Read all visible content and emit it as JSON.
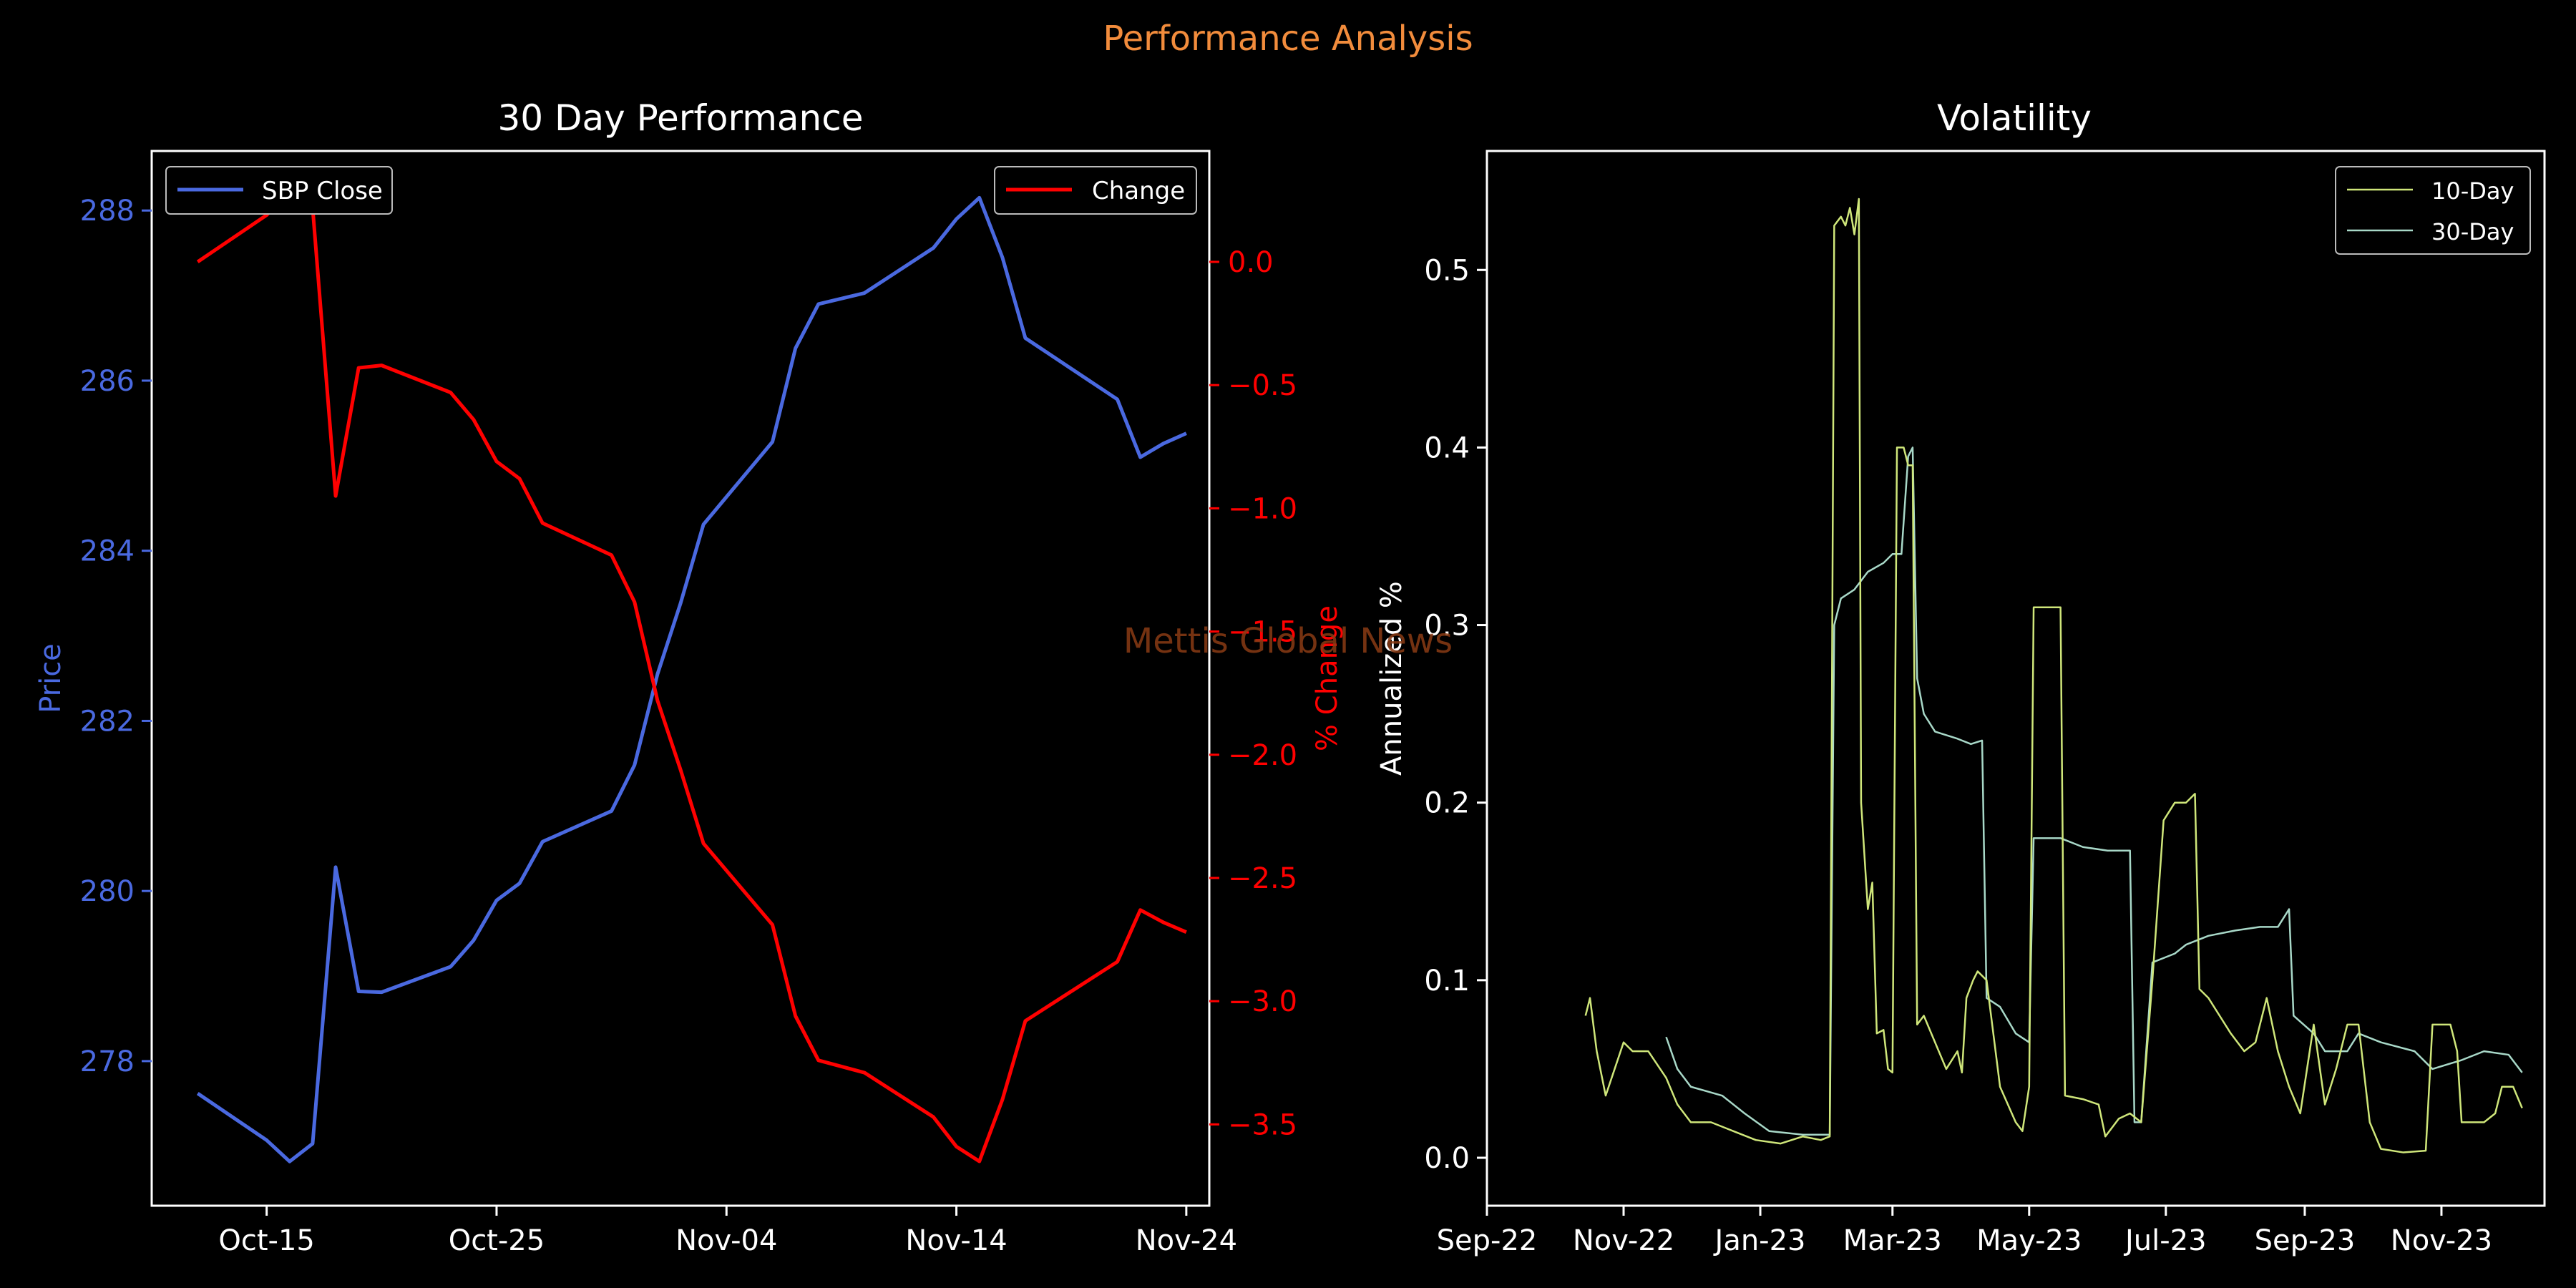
{
  "suptitle": "Performance Analysis",
  "watermark": "Mettis Global News",
  "colors": {
    "background": "#000000",
    "suptitle": "#f28c3c",
    "price": "#4a69e0",
    "change": "#ff0000",
    "vol10": "#cfe67a",
    "vol30": "#a8d8c8",
    "watermark": "#8a3b14",
    "axis": "#ffffff"
  },
  "chart_data": [
    {
      "type": "line",
      "title": "30 Day Performance",
      "xlabel": "",
      "ylabel": "Price",
      "y2label": "% Change",
      "x_ticks": [
        "Oct-15",
        "Oct-25",
        "Nov-04",
        "Nov-14",
        "Nov-24"
      ],
      "x_tick_dates": [
        "2023-10-15",
        "2023-10-25",
        "2023-11-04",
        "2023-11-14",
        "2023-11-24"
      ],
      "xlim": [
        "2023-10-10",
        "2023-11-25"
      ],
      "ylim": [
        276.3,
        288.7
      ],
      "y_ticks": [
        "278",
        "280",
        "282",
        "284",
        "286",
        "288"
      ],
      "y2lim": [
        -3.83,
        0.45
      ],
      "y2_ticks": [
        "0.0",
        "−0.5",
        "−1.0",
        "−1.5",
        "−2.0",
        "−2.5",
        "−3.0",
        "−3.5"
      ],
      "legend_left": "top-left",
      "legend_right": "top-right",
      "series": [
        {
          "name": "SBP Close",
          "axis": "left",
          "points": [
            [
              "2023-10-12",
              277.62
            ],
            [
              "2023-10-15",
              277.07
            ],
            [
              "2023-10-16",
              276.82
            ],
            [
              "2023-10-17",
              277.03
            ],
            [
              "2023-10-18",
              280.28
            ],
            [
              "2023-10-19",
              278.82
            ],
            [
              "2023-10-20",
              278.81
            ],
            [
              "2023-10-23",
              279.11
            ],
            [
              "2023-10-24",
              279.42
            ],
            [
              "2023-10-25",
              279.89
            ],
            [
              "2023-10-26",
              280.09
            ],
            [
              "2023-10-27",
              280.58
            ],
            [
              "2023-10-30",
              280.94
            ],
            [
              "2023-10-31",
              281.48
            ],
            [
              "2023-11-01",
              282.55
            ],
            [
              "2023-11-02",
              283.38
            ],
            [
              "2023-11-03",
              284.31
            ],
            [
              "2023-11-06",
              285.28
            ],
            [
              "2023-11-07",
              286.38
            ],
            [
              "2023-11-08",
              286.9
            ],
            [
              "2023-11-10",
              287.03
            ],
            [
              "2023-11-13",
              287.56
            ],
            [
              "2023-11-14",
              287.9
            ],
            [
              "2023-11-15",
              288.15
            ],
            [
              "2023-11-16",
              287.45
            ],
            [
              "2023-11-17",
              286.5
            ],
            [
              "2023-11-21",
              285.78
            ],
            [
              "2023-11-22",
              285.1
            ],
            [
              "2023-11-23",
              285.26
            ],
            [
              "2023-11-24",
              285.38
            ]
          ]
        },
        {
          "name": "Change",
          "axis": "right",
          "points": [
            [
              "2023-10-12",
              0.0
            ],
            [
              "2023-10-15",
              0.19
            ],
            [
              "2023-10-16",
              0.29
            ],
            [
              "2023-10-17",
              0.22
            ],
            [
              "2023-10-18",
              -0.95
            ],
            [
              "2023-10-19",
              -0.43
            ],
            [
              "2023-10-20",
              -0.42
            ],
            [
              "2023-10-23",
              -0.53
            ],
            [
              "2023-10-24",
              -0.64
            ],
            [
              "2023-10-25",
              -0.81
            ],
            [
              "2023-10-26",
              -0.88
            ],
            [
              "2023-10-27",
              -1.06
            ],
            [
              "2023-10-30",
              -1.19
            ],
            [
              "2023-10-31",
              -1.38
            ],
            [
              "2023-11-01",
              -1.78
            ],
            [
              "2023-11-02",
              -2.06
            ],
            [
              "2023-11-03",
              -2.36
            ],
            [
              "2023-11-06",
              -2.69
            ],
            [
              "2023-11-07",
              -3.06
            ],
            [
              "2023-11-08",
              -3.24
            ],
            [
              "2023-11-10",
              -3.29
            ],
            [
              "2023-11-13",
              -3.47
            ],
            [
              "2023-11-14",
              -3.59
            ],
            [
              "2023-11-15",
              -3.65
            ],
            [
              "2023-11-16",
              -3.4
            ],
            [
              "2023-11-17",
              -3.08
            ],
            [
              "2023-11-21",
              -2.84
            ],
            [
              "2023-11-22",
              -2.63
            ],
            [
              "2023-11-23",
              -2.68
            ],
            [
              "2023-11-24",
              -2.72
            ]
          ]
        }
      ]
    },
    {
      "type": "line",
      "title": "Volatility",
      "xlabel": "",
      "ylabel": "Annualized %",
      "x_ticks": [
        "Sep-22",
        "Nov-22",
        "Jan-23",
        "Mar-23",
        "May-23",
        "Jul-23",
        "Sep-23",
        "Nov-23"
      ],
      "x_tick_dates": [
        "2022-09-01",
        "2022-11-01",
        "2023-01-01",
        "2023-03-01",
        "2023-05-01",
        "2023-07-01",
        "2023-09-01",
        "2023-11-01"
      ],
      "xlim": [
        "2022-09-01",
        "2023-12-17"
      ],
      "ylim": [
        -0.027,
        0.567
      ],
      "y_ticks": [
        "0.0",
        "0.1",
        "0.2",
        "0.3",
        "0.4",
        "0.5"
      ],
      "legend": "top-right",
      "series": [
        {
          "name": "10-Day",
          "points": [
            [
              "2022-10-15",
              0.08
            ],
            [
              "2022-10-17",
              0.09
            ],
            [
              "2022-10-20",
              0.06
            ],
            [
              "2022-10-24",
              0.035
            ],
            [
              "2022-10-28",
              0.05
            ],
            [
              "2022-11-01",
              0.065
            ],
            [
              "2022-11-05",
              0.06
            ],
            [
              "2022-11-12",
              0.06
            ],
            [
              "2022-11-20",
              0.045
            ],
            [
              "2022-11-25",
              0.03
            ],
            [
              "2022-12-01",
              0.02
            ],
            [
              "2022-12-10",
              0.02
            ],
            [
              "2022-12-20",
              0.015
            ],
            [
              "2022-12-30",
              0.01
            ],
            [
              "2023-01-10",
              0.008
            ],
            [
              "2023-01-20",
              0.012
            ],
            [
              "2023-01-28",
              0.01
            ],
            [
              "2023-02-01",
              0.012
            ],
            [
              "2023-02-03",
              0.525
            ],
            [
              "2023-02-06",
              0.53
            ],
            [
              "2023-02-08",
              0.525
            ],
            [
              "2023-02-10",
              0.535
            ],
            [
              "2023-02-12",
              0.52
            ],
            [
              "2023-02-14",
              0.54
            ],
            [
              "2023-02-15",
              0.2
            ],
            [
              "2023-02-18",
              0.14
            ],
            [
              "2023-02-20",
              0.155
            ],
            [
              "2023-02-22",
              0.07
            ],
            [
              "2023-02-25",
              0.072
            ],
            [
              "2023-02-27",
              0.05
            ],
            [
              "2023-03-01",
              0.048
            ],
            [
              "2023-03-03",
              0.4
            ],
            [
              "2023-03-06",
              0.4
            ],
            [
              "2023-03-08",
              0.39
            ],
            [
              "2023-03-10",
              0.39
            ],
            [
              "2023-03-12",
              0.075
            ],
            [
              "2023-03-15",
              0.08
            ],
            [
              "2023-03-20",
              0.065
            ],
            [
              "2023-03-25",
              0.05
            ],
            [
              "2023-03-30",
              0.06
            ],
            [
              "2023-04-01",
              0.048
            ],
            [
              "2023-04-03",
              0.09
            ],
            [
              "2023-04-06",
              0.1
            ],
            [
              "2023-04-08",
              0.105
            ],
            [
              "2023-04-12",
              0.1
            ],
            [
              "2023-04-14",
              0.08
            ],
            [
              "2023-04-18",
              0.04
            ],
            [
              "2023-04-25",
              0.02
            ],
            [
              "2023-04-28",
              0.015
            ],
            [
              "2023-05-01",
              0.04
            ],
            [
              "2023-05-03",
              0.31
            ],
            [
              "2023-05-10",
              0.31
            ],
            [
              "2023-05-15",
              0.31
            ],
            [
              "2023-05-17",
              0.035
            ],
            [
              "2023-05-25",
              0.033
            ],
            [
              "2023-06-01",
              0.03
            ],
            [
              "2023-06-04",
              0.012
            ],
            [
              "2023-06-10",
              0.022
            ],
            [
              "2023-06-15",
              0.025
            ],
            [
              "2023-06-20",
              0.02
            ],
            [
              "2023-06-25",
              0.1
            ],
            [
              "2023-06-30",
              0.19
            ],
            [
              "2023-07-05",
              0.2
            ],
            [
              "2023-07-10",
              0.2
            ],
            [
              "2023-07-14",
              0.205
            ],
            [
              "2023-07-16",
              0.095
            ],
            [
              "2023-07-20",
              0.09
            ],
            [
              "2023-07-25",
              0.08
            ],
            [
              "2023-07-30",
              0.07
            ],
            [
              "2023-08-05",
              0.06
            ],
            [
              "2023-08-10",
              0.065
            ],
            [
              "2023-08-15",
              0.09
            ],
            [
              "2023-08-20",
              0.06
            ],
            [
              "2023-08-25",
              0.04
            ],
            [
              "2023-08-30",
              0.025
            ],
            [
              "2023-09-02",
              0.05
            ],
            [
              "2023-09-05",
              0.075
            ],
            [
              "2023-09-10",
              0.03
            ],
            [
              "2023-09-15",
              0.05
            ],
            [
              "2023-09-20",
              0.075
            ],
            [
              "2023-09-25",
              0.075
            ],
            [
              "2023-09-30",
              0.02
            ],
            [
              "2023-10-05",
              0.005
            ],
            [
              "2023-10-15",
              0.003
            ],
            [
              "2023-10-25",
              0.004
            ],
            [
              "2023-10-28",
              0.075
            ],
            [
              "2023-11-05",
              0.075
            ],
            [
              "2023-11-08",
              0.06
            ],
            [
              "2023-11-10",
              0.02
            ],
            [
              "2023-11-20",
              0.02
            ],
            [
              "2023-11-25",
              0.025
            ],
            [
              "2023-11-28",
              0.04
            ],
            [
              "2023-12-03",
              0.04
            ],
            [
              "2023-12-07",
              0.028
            ]
          ]
        },
        {
          "name": "30-Day",
          "points": [
            [
              "2022-11-20",
              0.068
            ],
            [
              "2022-11-25",
              0.05
            ],
            [
              "2022-12-01",
              0.04
            ],
            [
              "2022-12-15",
              0.035
            ],
            [
              "2022-12-25",
              0.025
            ],
            [
              "2023-01-05",
              0.015
            ],
            [
              "2023-01-20",
              0.013
            ],
            [
              "2023-02-01",
              0.013
            ],
            [
              "2023-02-03",
              0.3
            ],
            [
              "2023-02-06",
              0.315
            ],
            [
              "2023-02-12",
              0.32
            ],
            [
              "2023-02-18",
              0.33
            ],
            [
              "2023-02-25",
              0.335
            ],
            [
              "2023-03-01",
              0.34
            ],
            [
              "2023-03-05",
              0.34
            ],
            [
              "2023-03-08",
              0.395
            ],
            [
              "2023-03-10",
              0.4
            ],
            [
              "2023-03-12",
              0.27
            ],
            [
              "2023-03-15",
              0.25
            ],
            [
              "2023-03-20",
              0.24
            ],
            [
              "2023-03-30",
              0.236
            ],
            [
              "2023-04-05",
              0.233
            ],
            [
              "2023-04-10",
              0.235
            ],
            [
              "2023-04-12",
              0.09
            ],
            [
              "2023-04-18",
              0.085
            ],
            [
              "2023-04-25",
              0.07
            ],
            [
              "2023-05-01",
              0.065
            ],
            [
              "2023-05-03",
              0.18
            ],
            [
              "2023-05-15",
              0.18
            ],
            [
              "2023-05-25",
              0.175
            ],
            [
              "2023-06-05",
              0.173
            ],
            [
              "2023-06-15",
              0.173
            ],
            [
              "2023-06-17",
              0.02
            ],
            [
              "2023-06-20",
              0.02
            ],
            [
              "2023-06-25",
              0.11
            ],
            [
              "2023-07-05",
              0.115
            ],
            [
              "2023-07-10",
              0.12
            ],
            [
              "2023-07-20",
              0.125
            ],
            [
              "2023-08-01",
              0.128
            ],
            [
              "2023-08-12",
              0.13
            ],
            [
              "2023-08-20",
              0.13
            ],
            [
              "2023-08-25",
              0.14
            ],
            [
              "2023-08-27",
              0.08
            ],
            [
              "2023-09-05",
              0.07
            ],
            [
              "2023-09-10",
              0.06
            ],
            [
              "2023-09-20",
              0.06
            ],
            [
              "2023-09-25",
              0.07
            ],
            [
              "2023-10-05",
              0.065
            ],
            [
              "2023-10-20",
              0.06
            ],
            [
              "2023-10-28",
              0.05
            ],
            [
              "2023-11-10",
              0.055
            ],
            [
              "2023-11-20",
              0.06
            ],
            [
              "2023-12-01",
              0.058
            ],
            [
              "2023-12-07",
              0.048
            ]
          ]
        }
      ]
    }
  ]
}
